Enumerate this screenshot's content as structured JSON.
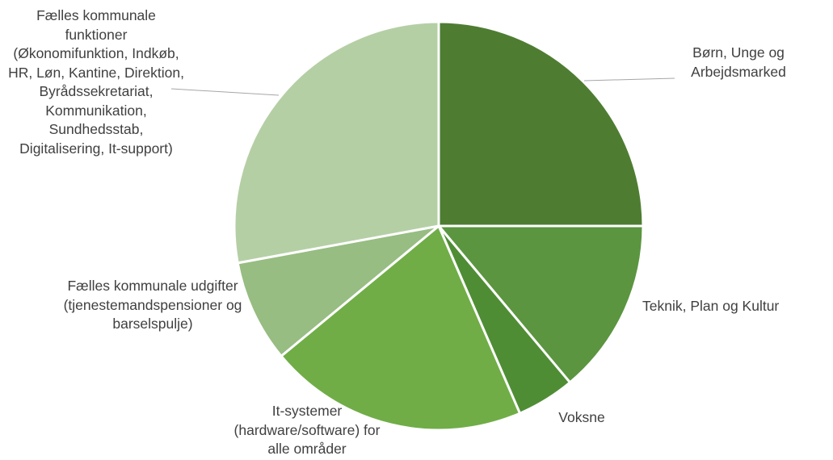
{
  "chart_data": {
    "type": "pie",
    "categories": [
      "Børn, Unge og Arbejdsmarked",
      "Teknik, Plan og Kultur",
      "Voksne",
      "It-systemer (hardware/software) for alle områder",
      "Fælles kommunale udgifter (tjenestemandspensioner og barselspulje)",
      "Fælles kommunale funktioner (Økonomifunktion, Indkøb, HR, Løn, Kantine, Direktion, Byrådssekretariat, Kommunikation, Sundhedsstab, Digitalisering, It-support)"
    ],
    "values": [
      25,
      13.9,
      4.6,
      20.5,
      8.1,
      27.9
    ],
    "colors": [
      "#4e7d32",
      "#5b9540",
      "#4f8d35",
      "#70ad47",
      "#97bd82",
      "#b5cfa5"
    ]
  }
}
